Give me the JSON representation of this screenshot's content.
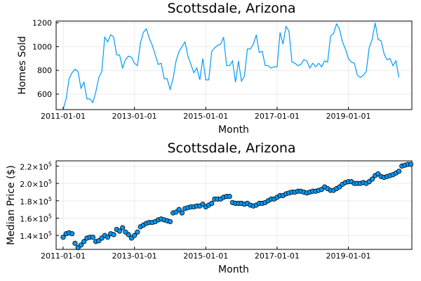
{
  "chart_data": [
    {
      "type": "line",
      "title": "Scottsdale, Arizona",
      "xlabel": "Month",
      "ylabel": "Homes Sold",
      "x_start": "2011-01-01",
      "x_ticks": [
        "2011-01-01",
        "2013-01-01",
        "2015-01-01",
        "2017-01-01",
        "2019-01-01"
      ],
      "y_ticks": [
        "600",
        "800",
        "1000",
        "1200"
      ],
      "ylim": [
        470,
        1215
      ],
      "grid": true,
      "legend": "none",
      "color": "#009af9",
      "values": [
        470,
        560,
        730,
        780,
        810,
        790,
        650,
        700,
        560,
        560,
        530,
        620,
        740,
        790,
        1080,
        1040,
        1100,
        1080,
        930,
        930,
        820,
        890,
        920,
        910,
        860,
        840,
        1030,
        1120,
        1150,
        1070,
        1010,
        930,
        850,
        860,
        730,
        730,
        640,
        730,
        880,
        960,
        1000,
        1040,
        920,
        850,
        780,
        820,
        720,
        900,
        720,
        720,
        960,
        990,
        1010,
        1020,
        1080,
        840,
        840,
        880,
        700,
        880,
        710,
        750,
        980,
        980,
        1020,
        1100,
        950,
        960,
        840,
        840,
        820,
        830,
        830,
        1120,
        1020,
        1170,
        1130,
        870,
        860,
        840,
        850,
        890,
        880,
        820,
        860,
        830,
        860,
        830,
        880,
        870,
        1090,
        1110,
        1190,
        1150,
        1040,
        980,
        900,
        870,
        860,
        760,
        740,
        760,
        790,
        990,
        1060,
        1200,
        1060,
        1050,
        940,
        890,
        900,
        840,
        880,
        740
      ]
    },
    {
      "type": "scatter",
      "title": "Scottsdale, Arizona",
      "xlabel": "Month",
      "ylabel": "Median Price ($)",
      "x_start": "2011-01-01",
      "x_ticks": [
        "2011-01-01",
        "2013-01-01",
        "2015-01-01",
        "2017-01-01",
        "2019-01-01"
      ],
      "y_ticks": [
        {
          "base": "1.4×10",
          "exp": "5"
        },
        {
          "base": "1.6×10",
          "exp": "5"
        },
        {
          "base": "1.8×10",
          "exp": "5"
        },
        {
          "base": "2.0×10",
          "exp": "5"
        },
        {
          "base": "2.2×10",
          "exp": "5"
        }
      ],
      "ylim": [
        124000,
        226000
      ],
      "grid": true,
      "legend": "none",
      "color": "#009af9",
      "values": [
        138000,
        142000,
        143000,
        142000,
        131000,
        126000,
        129000,
        133000,
        137000,
        138000,
        138000,
        133000,
        134000,
        137000,
        140000,
        138000,
        142000,
        141000,
        147000,
        145000,
        149000,
        144000,
        141000,
        137000,
        140000,
        144000,
        150000,
        152000,
        154000,
        155000,
        155000,
        156000,
        158000,
        159000,
        158000,
        157000,
        156000,
        166000,
        167000,
        170000,
        166000,
        171000,
        172000,
        173000,
        173000,
        174000,
        174000,
        176000,
        173000,
        175000,
        177000,
        182000,
        182000,
        182000,
        184000,
        185000,
        185000,
        178000,
        177000,
        177000,
        177000,
        176000,
        177000,
        175000,
        174000,
        175000,
        177000,
        177000,
        178000,
        180000,
        182000,
        182000,
        184000,
        186000,
        186000,
        188000,
        189000,
        190000,
        190000,
        191000,
        191000,
        190000,
        189000,
        190000,
        191000,
        191000,
        192000,
        193000,
        196000,
        194000,
        192000,
        192000,
        194000,
        196000,
        199000,
        201000,
        202000,
        202000,
        200000,
        200000,
        200000,
        201000,
        200000,
        202000,
        205000,
        209000,
        211000,
        208000,
        207000,
        208000,
        209000,
        210000,
        212000,
        214000,
        220000,
        221000,
        222000,
        222000
      ]
    }
  ]
}
